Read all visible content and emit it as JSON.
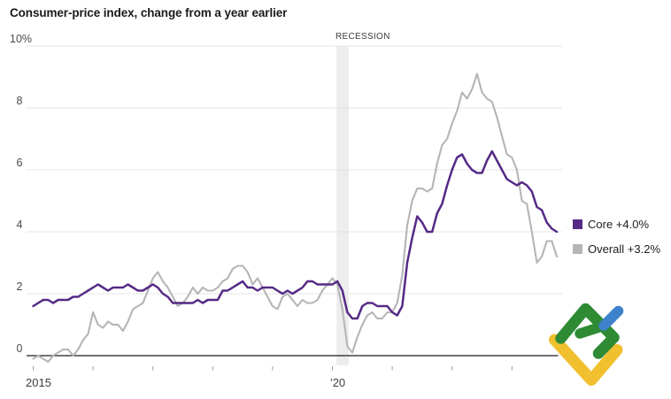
{
  "title": "Consumer-price index, change from a year earlier",
  "logo": {
    "name": "LiteFinance",
    "green": "#2e8b34",
    "blue": "#3e82cc",
    "yellow": "#f0c02e"
  },
  "chart_data": {
    "type": "line",
    "title": "Consumer-price index, change from a year earlier",
    "x_frequency": "monthly",
    "x_start": "2015-01",
    "x_end": "2023-10",
    "xlabel": "",
    "ylabel": "",
    "ylim": [
      -0.5,
      10
    ],
    "grid": true,
    "legend_position": "right",
    "y_gridlines": [
      {
        "value": 10,
        "label": "10%"
      },
      {
        "value": 8,
        "label": "8"
      },
      {
        "value": 6,
        "label": "6"
      },
      {
        "value": 4,
        "label": "4"
      },
      {
        "value": 2,
        "label": "2"
      },
      {
        "value": 0,
        "label": "0"
      }
    ],
    "x_ticks": [
      {
        "year": 2015,
        "label": "2015"
      },
      {
        "year": 2016,
        "label": ""
      },
      {
        "year": 2017,
        "label": ""
      },
      {
        "year": 2018,
        "label": ""
      },
      {
        "year": 2019,
        "label": ""
      },
      {
        "year": 2020,
        "label": "’20"
      },
      {
        "year": 2021,
        "label": ""
      },
      {
        "year": 2022,
        "label": ""
      },
      {
        "year": 2023,
        "label": ""
      }
    ],
    "recession": {
      "label": "RECESSION",
      "start": "2020-02",
      "end": "2020-04"
    },
    "series": [
      {
        "name": "Overall",
        "legend_label": "Overall +3.2%",
        "latest_value": 3.2,
        "color": "#b5b5b5",
        "values": [
          -0.1,
          0.0,
          -0.1,
          -0.2,
          0.0,
          0.1,
          0.2,
          0.2,
          0.0,
          0.2,
          0.5,
          0.7,
          1.4,
          1.0,
          0.9,
          1.1,
          1.0,
          1.0,
          0.8,
          1.1,
          1.5,
          1.6,
          1.7,
          2.1,
          2.5,
          2.7,
          2.4,
          2.2,
          1.9,
          1.6,
          1.7,
          1.9,
          2.2,
          2.0,
          2.2,
          2.1,
          2.1,
          2.2,
          2.4,
          2.5,
          2.8,
          2.9,
          2.9,
          2.7,
          2.3,
          2.5,
          2.2,
          1.9,
          1.6,
          1.5,
          1.9,
          2.0,
          1.8,
          1.6,
          1.8,
          1.7,
          1.7,
          1.8,
          2.1,
          2.3,
          2.5,
          2.3,
          1.5,
          0.3,
          0.1,
          0.6,
          1.0,
          1.3,
          1.4,
          1.2,
          1.2,
          1.4,
          1.4,
          1.7,
          2.6,
          4.2,
          5.0,
          5.4,
          5.4,
          5.3,
          5.4,
          6.2,
          6.8,
          7.0,
          7.5,
          7.9,
          8.5,
          8.3,
          8.6,
          9.1,
          8.5,
          8.3,
          8.2,
          7.7,
          7.1,
          6.5,
          6.4,
          6.0,
          5.0,
          4.9,
          4.0,
          3.0,
          3.2,
          3.7,
          3.7,
          3.2
        ]
      },
      {
        "name": "Core",
        "legend_label": "Core +4.0%",
        "latest_value": 4.0,
        "color": "#552a85",
        "values": [
          1.6,
          1.7,
          1.8,
          1.8,
          1.7,
          1.8,
          1.8,
          1.8,
          1.9,
          1.9,
          2.0,
          2.1,
          2.2,
          2.3,
          2.2,
          2.1,
          2.2,
          2.2,
          2.2,
          2.3,
          2.2,
          2.1,
          2.1,
          2.2,
          2.3,
          2.2,
          2.0,
          1.9,
          1.7,
          1.7,
          1.7,
          1.7,
          1.7,
          1.8,
          1.7,
          1.8,
          1.8,
          1.8,
          2.1,
          2.1,
          2.2,
          2.3,
          2.4,
          2.2,
          2.2,
          2.1,
          2.2,
          2.2,
          2.2,
          2.1,
          2.0,
          2.1,
          2.0,
          2.1,
          2.2,
          2.4,
          2.4,
          2.3,
          2.3,
          2.3,
          2.3,
          2.4,
          2.1,
          1.4,
          1.2,
          1.2,
          1.6,
          1.7,
          1.7,
          1.6,
          1.6,
          1.6,
          1.4,
          1.3,
          1.6,
          3.0,
          3.8,
          4.5,
          4.3,
          4.0,
          4.0,
          4.6,
          4.9,
          5.5,
          6.0,
          6.4,
          6.5,
          6.2,
          6.0,
          5.9,
          5.9,
          6.3,
          6.6,
          6.3,
          6.0,
          5.7,
          5.6,
          5.5,
          5.6,
          5.5,
          5.3,
          4.8,
          4.7,
          4.3,
          4.1,
          4.0
        ]
      }
    ]
  }
}
